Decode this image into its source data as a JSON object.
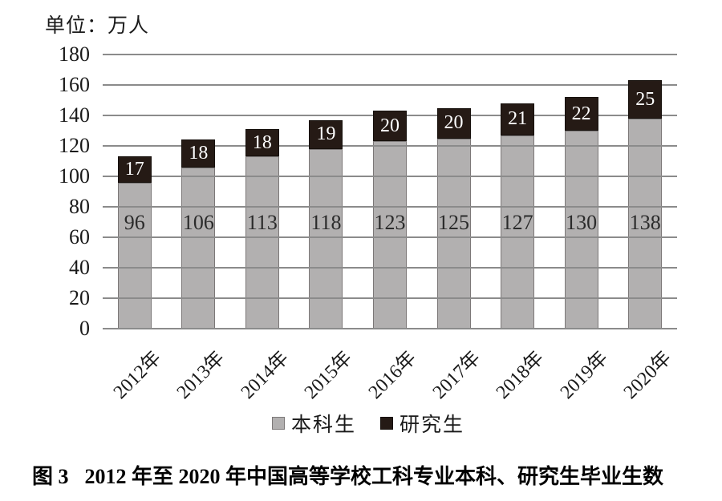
{
  "unit_label": "单位：万人",
  "chart_data": {
    "type": "bar",
    "stacked": true,
    "title": "",
    "xlabel": "",
    "ylabel": "单位：万人",
    "categories": [
      "2012年",
      "2013年",
      "2014年",
      "2015年",
      "2016年",
      "2017年",
      "2018年",
      "2019年",
      "2020年"
    ],
    "series": [
      {
        "name": "本科生",
        "color": "#b2b0b0",
        "border_color": "#7c7878",
        "label_color": "#2b2b2b",
        "values": [
          96,
          106,
          113,
          118,
          123,
          125,
          127,
          130,
          138
        ]
      },
      {
        "name": "研究生",
        "color": "#251a15",
        "border_color": "#16100c",
        "label_color": "#ffffff",
        "values": [
          17,
          18,
          18,
          19,
          20,
          20,
          21,
          22,
          25
        ]
      }
    ],
    "ylim": [
      0,
      180
    ],
    "ytick_step": 20,
    "grid": true,
    "gridline_color": "#8b8b8b",
    "legend_position": "bottom"
  },
  "caption": {
    "figure_label": "图 3",
    "text": "2012 年至 2020 年中国高等学校工科专业本科、研究生毕业生数"
  }
}
